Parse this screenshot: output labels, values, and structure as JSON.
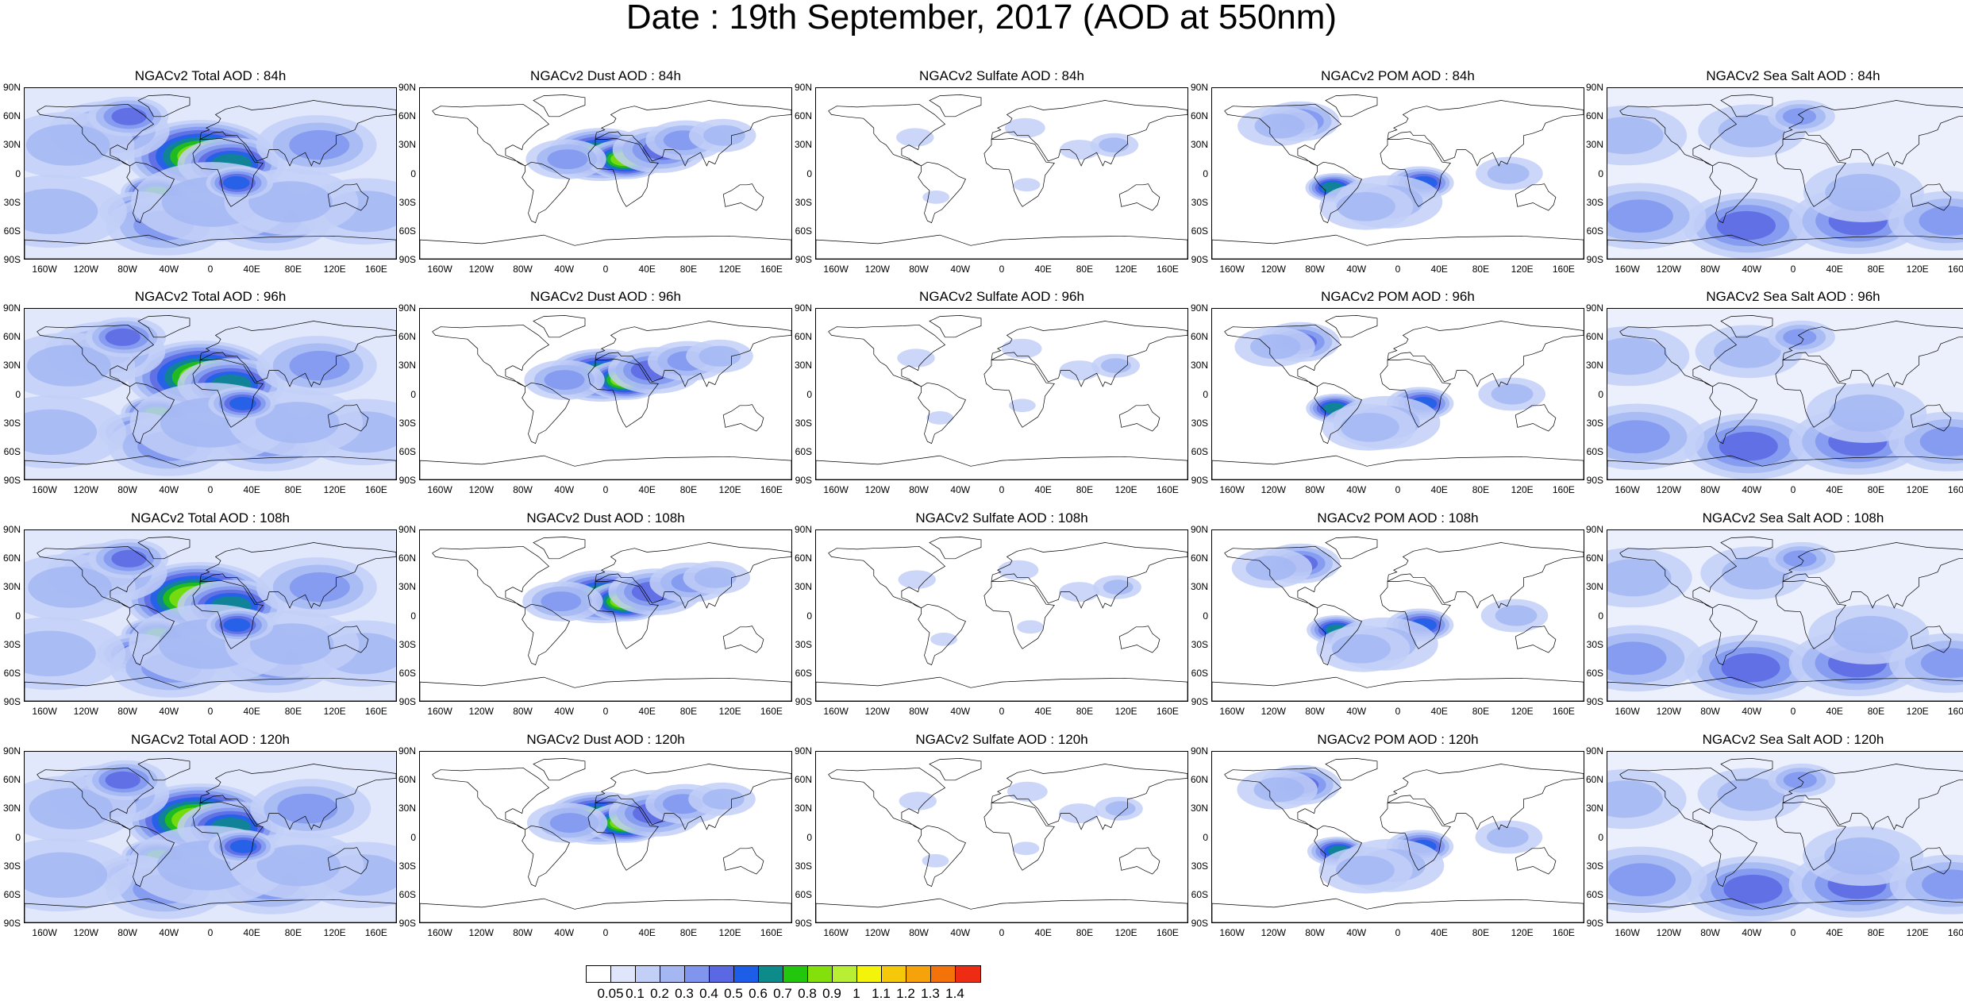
{
  "title": "Date : 19th September, 2017 (AOD at 550nm)",
  "axes": {
    "lat_ticks": [
      "90N",
      "60N",
      "30N",
      "0",
      "30S",
      "60S",
      "90S"
    ],
    "lon_ticks": [
      "160W",
      "120W",
      "80W",
      "40W",
      "0",
      "40E",
      "80E",
      "120E",
      "160E"
    ]
  },
  "panels": [
    {
      "title": "NGACv2 Total AOD : 84h",
      "species": "total"
    },
    {
      "title": "NGACv2 Dust AOD : 84h",
      "species": "dust"
    },
    {
      "title": "NGACv2 Sulfate AOD : 84h",
      "species": "sulfate"
    },
    {
      "title": "NGACv2 POM AOD : 84h",
      "species": "pom"
    },
    {
      "title": "NGACv2 Sea Salt AOD : 84h",
      "species": "seasalt"
    },
    {
      "title": "NGACv2 Total AOD : 96h",
      "species": "total"
    },
    {
      "title": "NGACv2 Dust AOD : 96h",
      "species": "dust"
    },
    {
      "title": "NGACv2 Sulfate AOD : 96h",
      "species": "sulfate"
    },
    {
      "title": "NGACv2 POM AOD : 96h",
      "species": "pom"
    },
    {
      "title": "NGACv2 Sea Salt AOD : 96h",
      "species": "seasalt"
    },
    {
      "title": "NGACv2 Total AOD : 108h",
      "species": "total"
    },
    {
      "title": "NGACv2 Dust AOD : 108h",
      "species": "dust"
    },
    {
      "title": "NGACv2 Sulfate AOD : 108h",
      "species": "sulfate"
    },
    {
      "title": "NGACv2 POM AOD : 108h",
      "species": "pom"
    },
    {
      "title": "NGACv2 Sea Salt AOD : 108h",
      "species": "seasalt"
    },
    {
      "title": "NGACv2 Total AOD : 120h",
      "species": "total"
    },
    {
      "title": "NGACv2 Dust AOD : 120h",
      "species": "dust"
    },
    {
      "title": "NGACv2 Sulfate AOD : 120h",
      "species": "sulfate"
    },
    {
      "title": "NGACv2 POM AOD : 120h",
      "species": "pom"
    },
    {
      "title": "NGACv2 Sea Salt  AOD : 120h",
      "species": "seasalt"
    }
  ],
  "colorbar": {
    "labels": [
      "0.05",
      "0.1",
      "0.2",
      "0.3",
      "0.4",
      "0.5",
      "0.6",
      "0.7",
      "0.8",
      "0.9",
      "1",
      "1.1",
      "1.2",
      "1.3",
      "1.4"
    ],
    "colors": [
      "#ffffff",
      "#dfe6fb",
      "#c2cff7",
      "#a5b7f3",
      "#8096ee",
      "#5a69e3",
      "#1c5ee8",
      "#0d8a8a",
      "#22c60c",
      "#84e00a",
      "#b8ee34",
      "#f4f40a",
      "#f6c80a",
      "#f6a20a",
      "#f4720a",
      "#ee2c14"
    ]
  }
}
